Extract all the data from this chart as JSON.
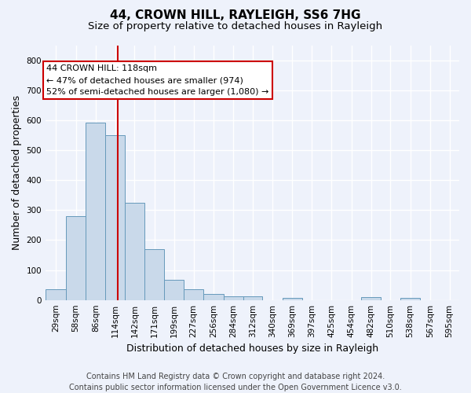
{
  "title1": "44, CROWN HILL, RAYLEIGH, SS6 7HG",
  "title2": "Size of property relative to detached houses in Rayleigh",
  "xlabel": "Distribution of detached houses by size in Rayleigh",
  "ylabel": "Number of detached properties",
  "footer1": "Contains HM Land Registry data © Crown copyright and database right 2024.",
  "footer2": "Contains public sector information licensed under the Open Government Licence v3.0.",
  "annotation_line1": "44 CROWN HILL: 118sqm",
  "annotation_line2": "← 47% of detached houses are smaller (974)",
  "annotation_line3": "52% of semi-detached houses are larger (1,080) →",
  "bar_color": "#c9d9ea",
  "bar_edge_color": "#6699bb",
  "red_line_x": 118,
  "categories": [
    "29sqm",
    "58sqm",
    "86sqm",
    "114sqm",
    "142sqm",
    "171sqm",
    "199sqm",
    "227sqm",
    "256sqm",
    "284sqm",
    "312sqm",
    "340sqm",
    "369sqm",
    "397sqm",
    "425sqm",
    "454sqm",
    "482sqm",
    "510sqm",
    "538sqm",
    "567sqm",
    "595sqm"
  ],
  "bin_edges": [
    14.5,
    43.5,
    72.5,
    100.5,
    128.5,
    156.5,
    185.5,
    213.5,
    241.5,
    270.5,
    298.5,
    326.5,
    355.5,
    383.5,
    411.5,
    440.5,
    468.5,
    496.5,
    524.5,
    553.5,
    581.5,
    609.5
  ],
  "values": [
    35,
    280,
    593,
    550,
    323,
    170,
    68,
    35,
    20,
    12,
    11,
    0,
    7,
    0,
    0,
    0,
    10,
    0,
    7,
    0,
    0
  ],
  "ylim": [
    0,
    850
  ],
  "yticks": [
    0,
    100,
    200,
    300,
    400,
    500,
    600,
    700,
    800
  ],
  "background_color": "#eef2fb",
  "grid_color": "#ffffff",
  "annotation_box_facecolor": "#ffffff",
  "annotation_box_edgecolor": "#cc0000",
  "red_line_color": "#cc0000",
  "title1_fontsize": 11,
  "title2_fontsize": 9.5,
  "ylabel_fontsize": 9,
  "xlabel_fontsize": 9,
  "annotation_fontsize": 8,
  "footer_fontsize": 7,
  "tick_fontsize": 7.5
}
